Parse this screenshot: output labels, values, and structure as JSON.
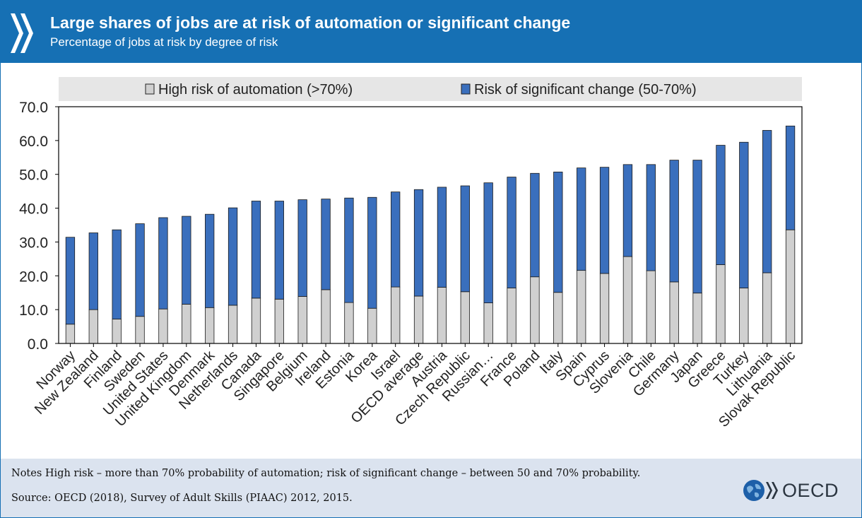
{
  "header": {
    "title": "Large shares of jobs are at risk of automation or significant change",
    "subtitle": "Percentage of jobs at risk by degree of risk"
  },
  "colors": {
    "header_bg": "#1670b4",
    "series_high": "#d0d0d0",
    "series_change": "#3a6fbd",
    "legend_bg": "#e6e6e6",
    "footer_bg": "#dbe3ef"
  },
  "chart_data": {
    "type": "bar",
    "stacked": true,
    "title": "Large shares of jobs are at risk of automation or significant change",
    "subtitle": "Percentage of jobs at risk by degree of risk",
    "xlabel": "",
    "ylabel": "",
    "ylim": [
      0,
      70
    ],
    "yticks": [
      "0.0",
      "10.0",
      "20.0",
      "30.0",
      "40.0",
      "50.0",
      "60.0",
      "70.0"
    ],
    "grid": false,
    "legend_position": "top",
    "categories": [
      "Norway",
      "New Zealand",
      "Finland",
      "Sweden",
      "United States",
      "United Kingdom",
      "Denmark",
      "Netherlands",
      "Canada",
      "Singapore",
      "Belgium",
      "Ireland",
      "Estonia",
      "Korea",
      "Israel",
      "OECD average",
      "Austria",
      "Czech Republic",
      "Russian…",
      "France",
      "Poland",
      "Italy",
      "Spain",
      "Cyprus",
      "Slovenia",
      "Chile",
      "Germany",
      "Japan",
      "Greece",
      "Turkey",
      "Lithuania",
      "Slovak Republic"
    ],
    "series": [
      {
        "name": "High risk of automation (>70%)",
        "color": "#d0d0d0",
        "values": [
          5.7,
          10.0,
          7.2,
          8.0,
          10.2,
          11.6,
          10.6,
          11.3,
          13.4,
          13.1,
          13.9,
          15.9,
          12.1,
          10.4,
          16.7,
          14.0,
          16.6,
          15.3,
          12.0,
          16.4,
          19.7,
          15.1,
          21.6,
          20.7,
          25.7,
          21.5,
          18.2,
          14.9,
          23.3,
          16.4,
          20.9,
          33.6
        ]
      },
      {
        "name": "Risk of significant change (50-70%)",
        "color": "#3a6fbd",
        "values": [
          25.7,
          22.7,
          26.4,
          27.4,
          27.0,
          26.0,
          27.6,
          28.8,
          28.7,
          29.0,
          28.6,
          26.8,
          30.9,
          32.8,
          28.1,
          31.5,
          29.6,
          31.3,
          35.5,
          32.8,
          30.6,
          35.6,
          30.3,
          31.4,
          27.2,
          31.4,
          36.0,
          39.3,
          35.3,
          43.1,
          42.1,
          30.7
        ]
      }
    ]
  },
  "footer": {
    "note": "Notes High risk – more than 70% probability of automation; risk of significant change – between 50 and 70% probability.",
    "source": "Source: OECD (2018), Survey of Adult Skills (PIAAC) 2012, 2015.",
    "logo_text": "OECD"
  }
}
